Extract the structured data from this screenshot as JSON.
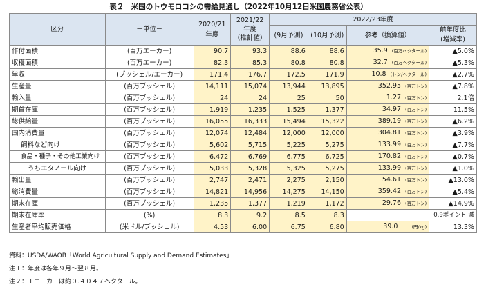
{
  "title": "表２　米国のトウモロコシの需給見通し（2022年10月12日米国農務省公表）",
  "header": {
    "kubun": "区分",
    "unit": "－単位－",
    "y2020": "2020/21",
    "y2020_sub": "年度",
    "y2021": "2021/22",
    "y2021_sub": "年度",
    "y2021_sub2": "（推計値）",
    "y2022": "2022/23年度",
    "sep": "(9月予測)",
    "oct": "(10月予測)",
    "ref": "参考（換算値）",
    "chg": "前年度比",
    "chg_sub": "(増減率)"
  },
  "rows": [
    {
      "item": "作付面積",
      "unit": "(百万エーカー)",
      "v2020": "90.7",
      "v2021": "93.3",
      "sep": "88.6",
      "oct": "88.6",
      "ref": "35.9",
      "ref_unit": "(百万ヘクタール)",
      "chg": "▲5.0%"
    },
    {
      "item": "収穫面積",
      "unit": "(百万エーカー)",
      "v2020": "82.3",
      "v2021": "85.3",
      "sep": "80.8",
      "oct": "80.8",
      "ref": "32.7",
      "ref_unit": "(百万ヘクタール)",
      "chg": "▲5.3%"
    },
    {
      "item": "単収",
      "unit": "(ブッシェル/エーカー)",
      "v2020": "171.4",
      "v2021": "176.7",
      "sep": "172.5",
      "oct": "171.9",
      "ref": "10.8",
      "ref_unit": "(トン/ヘクタール)",
      "chg": "▲2.7%"
    },
    {
      "item": "生産量",
      "unit": "(百万ブッシェル)",
      "v2020": "14,111",
      "v2021": "15,074",
      "sep": "13,944",
      "oct": "13,895",
      "ref": "352.95",
      "ref_unit": "(百万トン)",
      "chg": "▲7.8%"
    },
    {
      "item": "輸入量",
      "unit": "(百万ブッシェル)",
      "v2020": "24",
      "v2021": "24",
      "sep": "25",
      "oct": "50",
      "ref": "1.27",
      "ref_unit": "(百万トン)",
      "chg": "2.1倍"
    },
    {
      "item": "期首在庫",
      "unit": "(百万ブッシェル)",
      "v2020": "1,919",
      "v2021": "1,235",
      "sep": "1,525",
      "oct": "1,377",
      "ref": "34.97",
      "ref_unit": "(百万トン)",
      "chg": "11.5%"
    },
    {
      "item": "総供給量",
      "unit": "(百万ブッシェル)",
      "v2020": "16,055",
      "v2021": "16,333",
      "sep": "15,494",
      "oct": "15,322",
      "ref": "389.19",
      "ref_unit": "(百万トン)",
      "chg": "▲6.2%"
    },
    {
      "item": "国内消費量",
      "unit": "(百万ブッシェル)",
      "v2020": "12,074",
      "v2021": "12,484",
      "sep": "12,000",
      "oct": "12,000",
      "ref": "304.81",
      "ref_unit": "(百万トン)",
      "chg": "▲3.9%"
    },
    {
      "item": "飼料など向け",
      "unit": "(百万ブッシェル)",
      "v2020": "5,602",
      "v2021": "5,715",
      "sep": "5,225",
      "oct": "5,275",
      "ref": "133.99",
      "ref_unit": "(百万トン)",
      "chg": "▲7.7%"
    },
    {
      "item": "食品・種子・その他工業向け",
      "unit": "(百万ブッシェル)",
      "v2020": "6,472",
      "v2021": "6,769",
      "sep": "6,775",
      "oct": "6,725",
      "ref": "170.82",
      "ref_unit": "(百万トン)",
      "chg": "▲0.7%"
    },
    {
      "item": "うちエタノール向け",
      "unit": "(百万ブッシェル)",
      "v2020": "5,033",
      "v2021": "5,328",
      "sep": "5,325",
      "oct": "5,275",
      "ref": "133.99",
      "ref_unit": "(百万トン)",
      "chg": "▲1.0%"
    },
    {
      "item": "輸出量",
      "unit": "(百万ブッシェル)",
      "v2020": "2,747",
      "v2021": "2,471",
      "sep": "2,275",
      "oct": "2,150",
      "ref": "54.61",
      "ref_unit": "(百万トン)",
      "chg": "▲13.0%"
    },
    {
      "item": "総消費量",
      "unit": "(百万ブッシェル)",
      "v2020": "14,821",
      "v2021": "14,956",
      "sep": "14,275",
      "oct": "14,150",
      "ref": "359.42",
      "ref_unit": "(百万トン)",
      "chg": "▲5.4%"
    },
    {
      "item": "期末在庫",
      "unit": "(百万ブッシェル)",
      "v2020": "1,235",
      "v2021": "1,377",
      "sep": "1,219",
      "oct": "1,172",
      "ref": "29.76",
      "ref_unit": "(百万トン)",
      "chg": "▲14.9%"
    },
    {
      "item": "期末在庫率",
      "unit": "(%)",
      "v2020": "8.3",
      "v2021": "9.2",
      "sep": "8.5",
      "oct": "8.3",
      "ref": "",
      "ref_unit": "",
      "chg": "0.9ポイント 減"
    },
    {
      "item": "生産者平均販売価格",
      "unit": "(米ドル/ブッシェル)",
      "v2020": "4.53",
      "v2021": "6.00",
      "sep": "6.75",
      "oct": "6.80",
      "ref": "39.0",
      "ref_unit": "(円/kg)",
      "chg": "13.3%"
    }
  ],
  "notes": [
    "資料：USDA/WAOB「World Agricultural Supply and Demand Estimates」",
    "注１：年度は各年９月～翌８月。",
    "注２：１エーカーは約０.４０４７ヘクタール。"
  ]
}
